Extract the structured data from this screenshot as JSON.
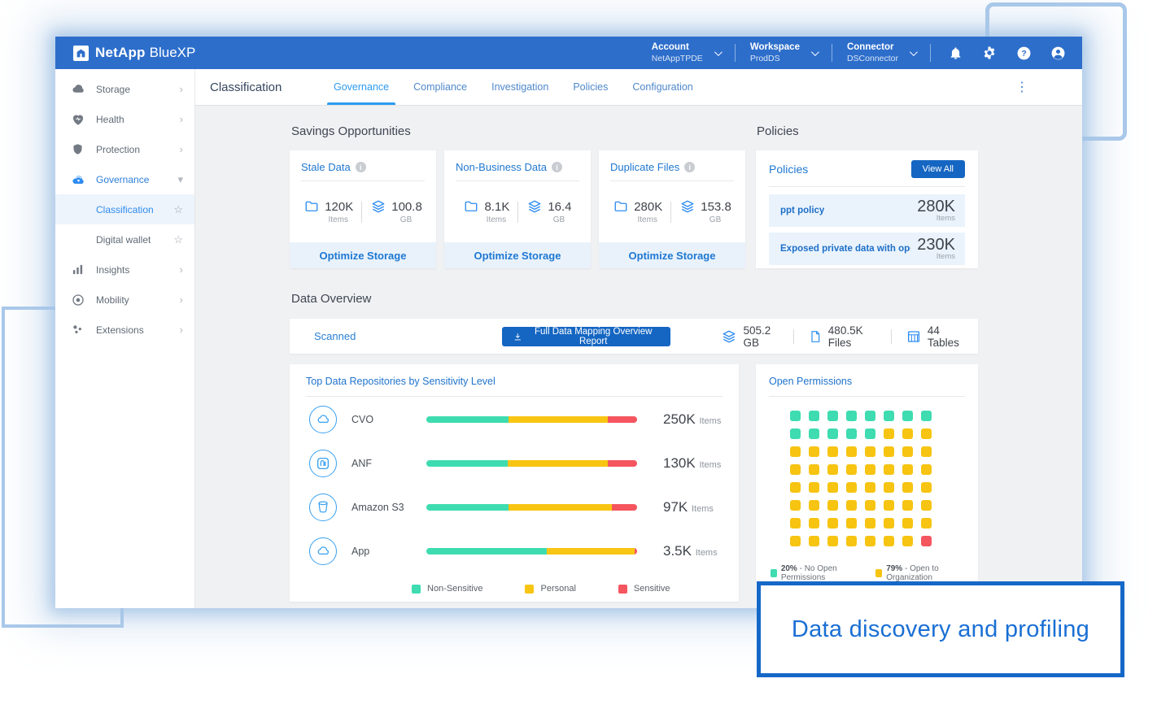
{
  "header": {
    "brand": {
      "name": "NetApp",
      "suffix": "BlueXP"
    },
    "menus": [
      {
        "label": "Account",
        "value": "NetAppTPDE"
      },
      {
        "label": "Workspace",
        "value": "ProdDS"
      },
      {
        "label": "Connector",
        "value": "DSConnector"
      }
    ],
    "icons": [
      "notifications",
      "settings",
      "help",
      "profile"
    ]
  },
  "sidebar": {
    "items": [
      {
        "label": "Storage",
        "icon": "storage",
        "chevron": "right"
      },
      {
        "label": "Health",
        "icon": "health",
        "chevron": "right"
      },
      {
        "label": "Protection",
        "icon": "protection",
        "chevron": "right"
      },
      {
        "label": "Governance",
        "icon": "governance",
        "chevron": "down",
        "active": true
      },
      {
        "label": "Classification",
        "child": true,
        "active": true,
        "star": "☆"
      },
      {
        "label": "Digital wallet",
        "child": true,
        "star": "☆"
      },
      {
        "label": "Insights",
        "icon": "insights",
        "chevron": "right"
      },
      {
        "label": "Mobility",
        "icon": "mobility",
        "chevron": "right"
      },
      {
        "label": "Extensions",
        "icon": "extensions",
        "chevron": "right"
      }
    ]
  },
  "page": {
    "title": "Classification",
    "tabs": [
      {
        "label": "Governance",
        "active": true
      },
      {
        "label": "Compliance"
      },
      {
        "label": "Investigation"
      },
      {
        "label": "Policies"
      },
      {
        "label": "Configuration"
      }
    ]
  },
  "savings": {
    "heading": "Savings Opportunities",
    "cards": [
      {
        "title": "Stale Data",
        "items": "120K",
        "items_unit": "Items",
        "size": "100.8",
        "size_unit": "GB",
        "action": "Optimize Storage"
      },
      {
        "title": "Non-Business Data",
        "items": "8.1K",
        "items_unit": "Items",
        "size": "16.4",
        "size_unit": "GB",
        "action": "Optimize Storage"
      },
      {
        "title": "Duplicate Files",
        "items": "280K",
        "items_unit": "Items",
        "size": "153.8",
        "size_unit": "GB",
        "action": "Optimize Storage"
      }
    ]
  },
  "policies": {
    "heading": "Policies",
    "panel_title": "Policies",
    "view_all": "View All",
    "rows": [
      {
        "name": "ppt policy",
        "value": "280K",
        "unit": "Items"
      },
      {
        "name": "Exposed private data with open permi...",
        "value": "230K",
        "unit": "Items"
      }
    ]
  },
  "data_overview": {
    "heading": "Data Overview",
    "scanned_label": "Scanned",
    "report_button": "Full Data Mapping Overview Report",
    "stats": [
      {
        "icon": "layers",
        "value": "505.2 GB"
      },
      {
        "icon": "file",
        "value": "480.5K Files"
      },
      {
        "icon": "table",
        "value": "44 Tables"
      }
    ]
  },
  "chart_data": [
    {
      "type": "bar",
      "title": "Top Data Repositories by Sensitivity Level",
      "orientation": "horizontal-stacked-percent",
      "categories": [
        "CVO",
        "ANF",
        "Amazon S3",
        "App"
      ],
      "category_icons": [
        "cloud",
        "anf",
        "bucket",
        "cloud"
      ],
      "series": [
        {
          "name": "Non-Sensitive",
          "color": "#3edcb0",
          "values": [
            39,
            38.5,
            39,
            57
          ]
        },
        {
          "name": "Personal",
          "color": "#f8c513",
          "values": [
            47,
            47.5,
            49,
            42
          ]
        },
        {
          "name": "Sensitive",
          "color": "#f4555e",
          "values": [
            14,
            14,
            12,
            1
          ]
        }
      ],
      "totals": [
        "250K",
        "130K",
        "97K",
        "3.5K"
      ],
      "totals_unit": "Items",
      "legend_position": "bottom"
    },
    {
      "type": "heatmap",
      "subtype": "waffle",
      "title": "Open Permissions",
      "grid": {
        "rows": 8,
        "cols": 8
      },
      "cells": [
        {
          "label": "No Open Permissions",
          "pct": "20%",
          "color": "#3edcb0",
          "count": 13
        },
        {
          "label": "Open to Organization",
          "pct": "79%",
          "color": "#f6c411",
          "count": 50
        },
        {
          "label": "",
          "pct": "",
          "color": "#f4555e",
          "count": 1
        }
      ]
    }
  ],
  "callout": {
    "text": "Data discovery and profiling"
  },
  "colors": {
    "header_blue": "#2d6ecb",
    "accent_blue": "#1f78d1",
    "active_tab": "#2d9bf0",
    "button_blue": "#1566c2",
    "teal": "#3edcb0",
    "yellow": "#f8c513",
    "red": "#f4555e",
    "annotation_blue": "#a9c8ea",
    "callout_blue": "#1568c8"
  }
}
